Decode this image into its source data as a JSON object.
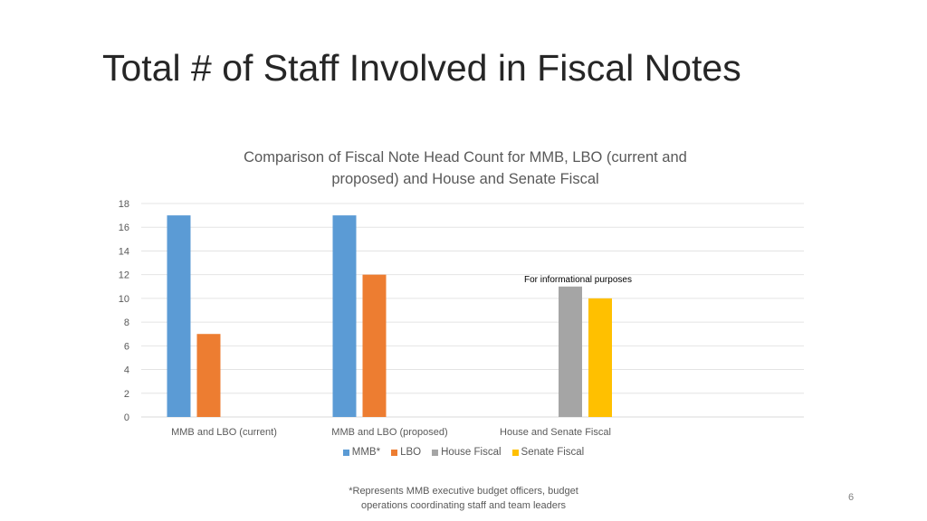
{
  "slide": {
    "title": "Total # of Staff Involved in Fiscal Notes",
    "footnote_line1": "*Represents MMB executive budget officers, budget",
    "footnote_line2": "operations coordinating staff and team leaders",
    "page_number": "6"
  },
  "chart_data": {
    "type": "bar",
    "title_line1": "Comparison of Fiscal Note Head Count for MMB, LBO (current and",
    "title_line2": "proposed) and House and Senate Fiscal",
    "categories": [
      "MMB and LBO (current)",
      "MMB and LBO (proposed)",
      "House and Senate Fiscal"
    ],
    "series": [
      {
        "name": "MMB*",
        "color": "#5b9bd5",
        "values": [
          17,
          17,
          null
        ]
      },
      {
        "name": "LBO",
        "color": "#ed7d31",
        "values": [
          7,
          12,
          null
        ]
      },
      {
        "name": "House Fiscal",
        "color": "#a5a5a5",
        "values": [
          null,
          null,
          11
        ]
      },
      {
        "name": "Senate Fiscal",
        "color": "#ffc000",
        "values": [
          null,
          null,
          10
        ]
      }
    ],
    "ylim": [
      0,
      18
    ],
    "yticks": [
      0,
      2,
      4,
      6,
      8,
      10,
      12,
      14,
      16,
      18
    ],
    "grid": true,
    "legend_position": "bottom",
    "annotation": "For informational purposes"
  }
}
